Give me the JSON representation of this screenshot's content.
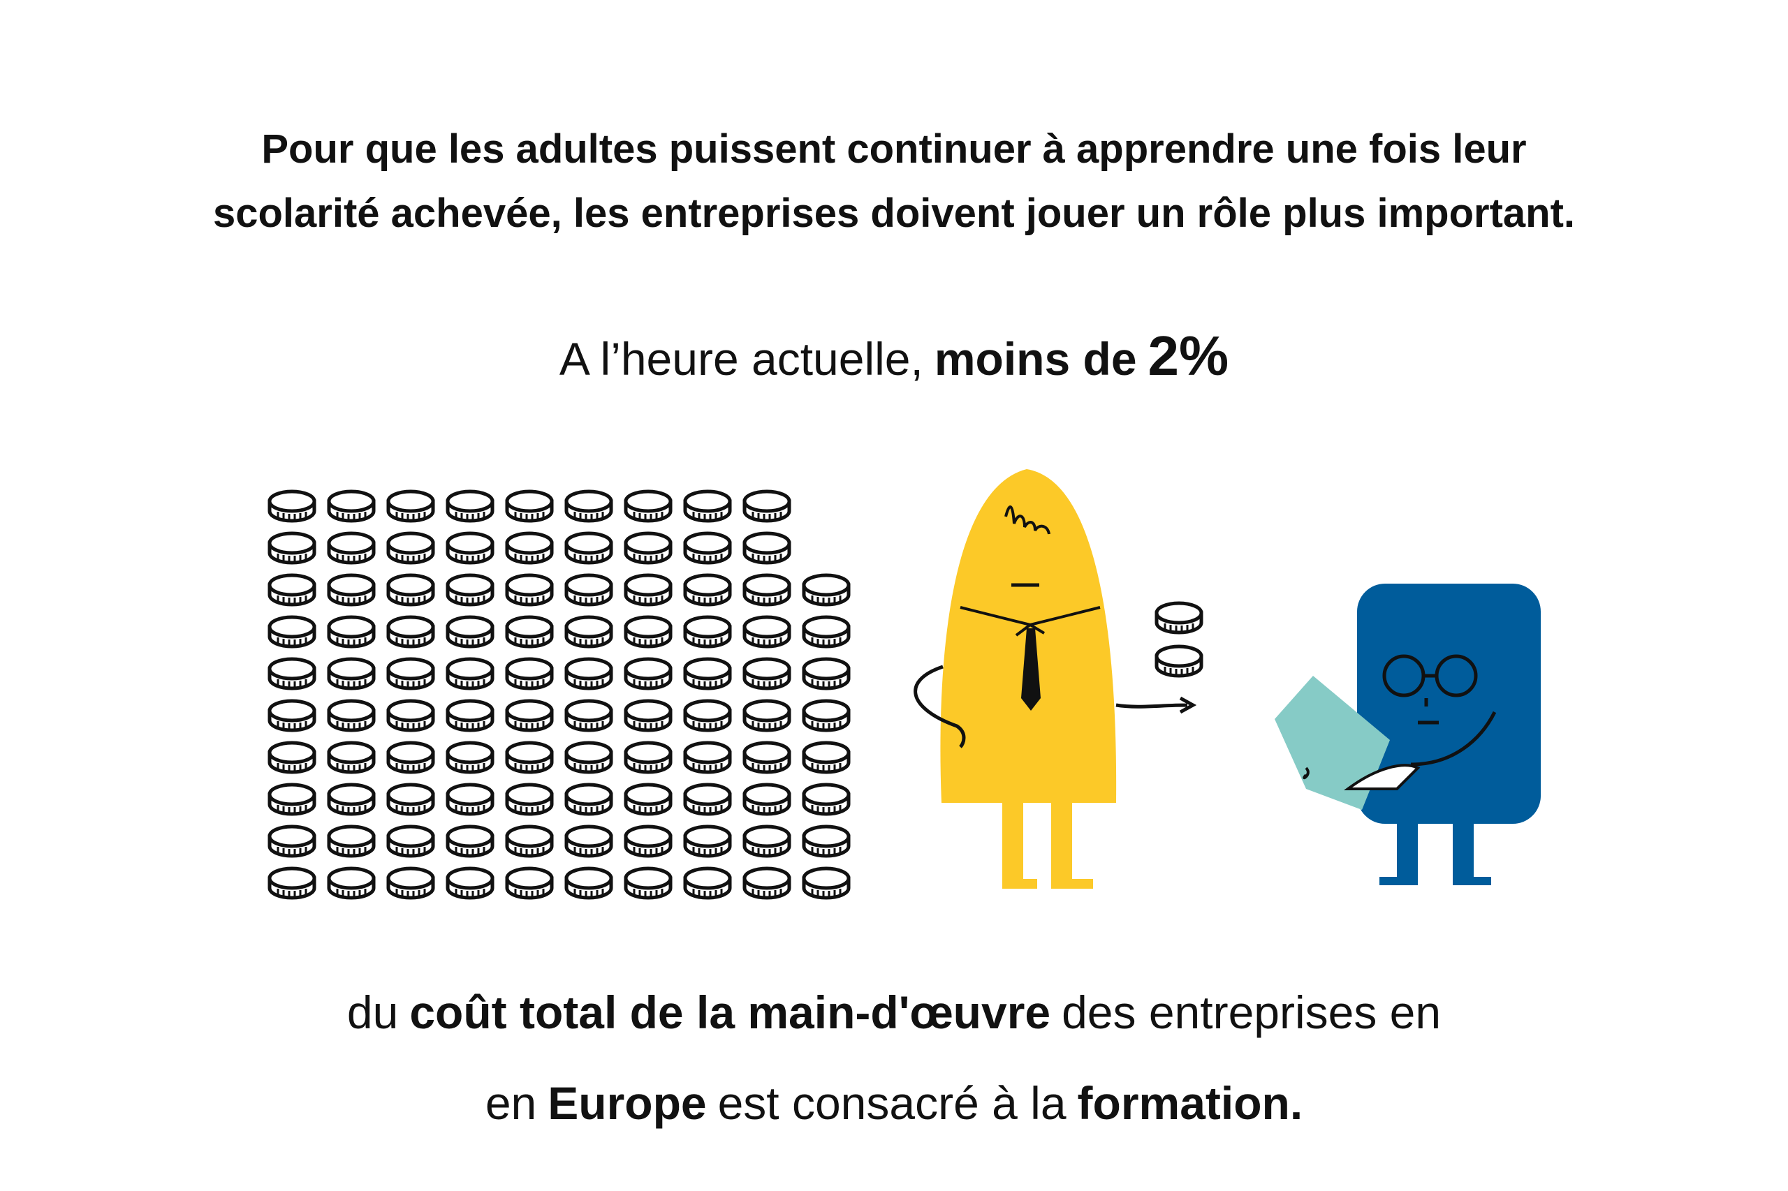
{
  "heading": {
    "lines": [
      "Pour que les adultes puissent continuer à apprendre une fois leur",
      "scolarité achevée, les entreprises doivent jouer un rôle plus important."
    ]
  },
  "statement_top": {
    "segments": [
      {
        "text": "A l’heure actuelle,",
        "bold": false
      },
      {
        "text": "moins de",
        "bold": true
      },
      {
        "text": "2%",
        "bold": true
      }
    ]
  },
  "statement_bottom": {
    "lines": [
      {
        "segments": [
          {
            "text": "du",
            "bold": false
          },
          {
            "text": "coût total de la main-d'œuvre",
            "bold": true
          },
          {
            "text": "des entreprises en",
            "bold": false
          }
        ]
      },
      {
        "segments": [
          {
            "text": "en",
            "bold": false
          },
          {
            "text": "Europe",
            "bold": true
          },
          {
            "text": "est consacré à la",
            "bold": false
          },
          {
            "text": "formation.",
            "bold": true
          }
        ]
      }
    ]
  }
}
